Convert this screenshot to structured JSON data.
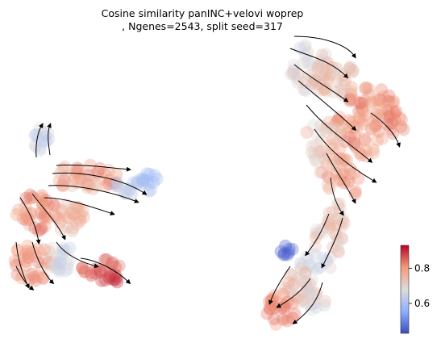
{
  "chart_data": {
    "type": "scatter",
    "title_line1": "Cosine similarity panINC+velovi woprep",
    "title_line2": ", Ngenes=2543, split seed=317",
    "colorbar": {
      "cmap": "coolwarm",
      "range": [
        0.43,
        0.93
      ],
      "ticks": [
        0.6,
        0.8
      ],
      "tick_labels": [
        "0.6",
        "0.8"
      ],
      "low_color": "#4f62d4",
      "mid_color": "#dddcdc",
      "high_color": "#b40426"
    },
    "grid": false,
    "axes_visible": false,
    "overlay": "velocity streamlines (black arrows)"
  }
}
